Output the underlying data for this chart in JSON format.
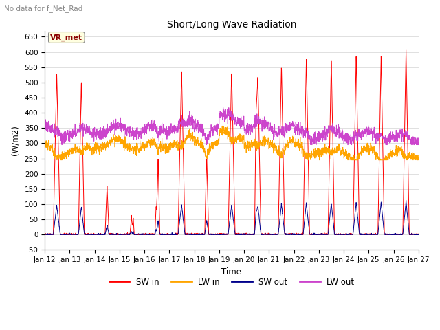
{
  "title": "Short/Long Wave Radiation",
  "subtitle": "No data for f_Net_Rad",
  "ylabel": "(W/m2)",
  "xlabel": "Time",
  "legend_label": "VR_met",
  "ylim": [
    -50,
    670
  ],
  "yticks": [
    -50,
    0,
    50,
    100,
    150,
    200,
    250,
    300,
    350,
    400,
    450,
    500,
    550,
    600,
    650
  ],
  "series_colors": {
    "SW_in": "#FF0000",
    "LW_in": "#FFA500",
    "SW_out": "#00008B",
    "LW_out": "#CC44CC"
  },
  "figsize": [
    6.4,
    4.8
  ],
  "dpi": 100
}
